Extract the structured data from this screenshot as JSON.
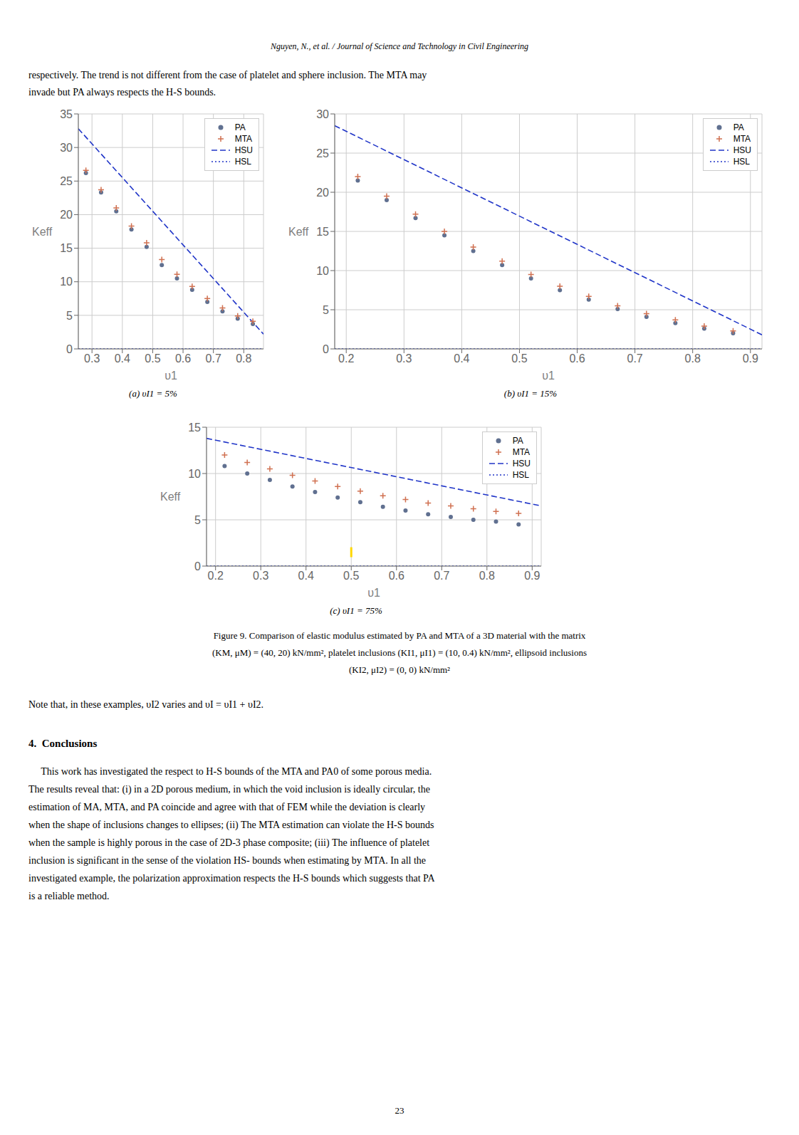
{
  "annotations": [
    "Nguyen, N., et al. / Journal of Science and Technology in Civil Engineering",
    "respectively. The trend is not different from the case of platelet and sphere inclusion. The MTA may",
    "invade but PA always respects the H-S bounds.",
    "Figure 9. Comparison of elastic modulus estimated by PA and MTA of a 3D material with the matrix",
    "(KM, μM) = (40, 20) kN/mm², platelet inclusions (KI1, μI1) = (10, 0.4) kN/mm², ellipsoid inclusions",
    "(KI2, μI2) = (0, 0) kN/mm²",
    "Note that, in these examples, υI2 varies and υI = υI1 + υI2.",
    "4.  Conclusions",
    "     This work has investigated the respect to H-S bounds of the MTA and PA0 of some porous media.",
    "The results reveal that: (i) in a 2D porous medium, in which the void inclusion is ideally circular, the",
    "estimation of MA, MTA, and PA coincide and agree with that of FEM while the deviation is clearly",
    "when the shape of inclusions changes to ellipses; (ii) The MTA estimation can violate the H-S bounds",
    "when the sample is highly porous in the case of 2D-3 phase composite; (iii) The influence of platelet",
    "inclusion is significant in the sense of the violation HS- bounds when estimating by MTA. In all the",
    "investigated example, the polarization approximation respects the H-S bounds which suggests that PA",
    "is a reliable method.",
    "23"
  ],
  "chart_data": [
    {
      "type": "scatter",
      "title": "(a) υI1 = 5%",
      "xlabel": "υ1",
      "ylabel": "Keff",
      "xlim": [
        0.255,
        0.865
      ],
      "ylim": [
        0,
        35
      ],
      "xticks": [
        0.3,
        0.4,
        0.5,
        0.6,
        0.7,
        0.8
      ],
      "yticks": [
        0,
        5,
        10,
        15,
        20,
        25,
        30,
        35
      ],
      "grid": true,
      "legend": "upper right",
      "series": [
        {
          "name": "PA",
          "type": "scatter",
          "color": "#607090",
          "marker": "circle",
          "x": [
            0.28,
            0.33,
            0.38,
            0.43,
            0.48,
            0.53,
            0.58,
            0.63,
            0.68,
            0.73,
            0.78,
            0.83
          ],
          "values": [
            26.2,
            23.3,
            20.5,
            17.8,
            15.2,
            12.5,
            10.5,
            8.8,
            7.0,
            5.6,
            4.5,
            3.7
          ]
        },
        {
          "name": "MTA",
          "type": "scatter",
          "color": "#D07050",
          "marker": "plus",
          "x": [
            0.28,
            0.33,
            0.38,
            0.43,
            0.48,
            0.53,
            0.58,
            0.63,
            0.68,
            0.73,
            0.78,
            0.83
          ],
          "values": [
            26.6,
            23.7,
            21.0,
            18.3,
            15.8,
            13.3,
            11.1,
            9.3,
            7.5,
            6.1,
            4.9,
            4.1
          ]
        },
        {
          "name": "HSU",
          "type": "line",
          "color": "#2035C8",
          "line_style": "dashed",
          "x": [
            0.255,
            0.865
          ],
          "values": [
            32.8,
            2.2
          ]
        },
        {
          "name": "HSL",
          "type": "line",
          "color": "#2035C8",
          "line_style": "dotted",
          "x": [
            0.255,
            0.865
          ],
          "values": [
            0.0,
            0.0
          ]
        }
      ]
    },
    {
      "type": "scatter",
      "title": "(b) υI1 = 15%",
      "xlabel": "υ1",
      "ylabel": "Keff",
      "xlim": [
        0.18,
        0.92
      ],
      "ylim": [
        0,
        30
      ],
      "xticks": [
        0.2,
        0.3,
        0.4,
        0.5,
        0.6,
        0.7,
        0.8,
        0.9
      ],
      "yticks": [
        0,
        5,
        10,
        15,
        20,
        25,
        30
      ],
      "grid": true,
      "legend": "upper right",
      "series": [
        {
          "name": "PA",
          "type": "scatter",
          "color": "#607090",
          "marker": "circle",
          "x": [
            0.22,
            0.27,
            0.32,
            0.37,
            0.42,
            0.47,
            0.52,
            0.57,
            0.62,
            0.67,
            0.72,
            0.77,
            0.82,
            0.87
          ],
          "values": [
            21.5,
            19.0,
            16.7,
            14.5,
            12.5,
            10.7,
            9.0,
            7.5,
            6.3,
            5.1,
            4.1,
            3.3,
            2.6,
            2.0
          ]
        },
        {
          "name": "MTA",
          "type": "scatter",
          "color": "#D07050",
          "marker": "plus",
          "x": [
            0.22,
            0.27,
            0.32,
            0.37,
            0.42,
            0.47,
            0.52,
            0.57,
            0.62,
            0.67,
            0.72,
            0.77,
            0.82,
            0.87
          ],
          "values": [
            22.0,
            19.5,
            17.2,
            15.0,
            13.0,
            11.2,
            9.5,
            8.0,
            6.7,
            5.5,
            4.5,
            3.7,
            2.9,
            2.3
          ]
        },
        {
          "name": "HSU",
          "type": "line",
          "color": "#2035C8",
          "line_style": "dashed",
          "x": [
            0.18,
            0.92
          ],
          "values": [
            28.5,
            1.8
          ]
        },
        {
          "name": "HSL",
          "type": "line",
          "color": "#2035C8",
          "line_style": "dotted",
          "x": [
            0.18,
            0.92
          ],
          "values": [
            0.0,
            0.0
          ]
        }
      ]
    },
    {
      "type": "scatter",
      "title": "(c) υI1 = 75%",
      "xlabel": "υ1",
      "ylabel": "Keff",
      "xlim": [
        0.18,
        0.92
      ],
      "ylim": [
        0,
        15
      ],
      "xticks": [
        0.2,
        0.3,
        0.4,
        0.5,
        0.6,
        0.7,
        0.8,
        0.9
      ],
      "yticks": [
        0,
        5,
        10,
        15
      ],
      "grid": true,
      "legend": "upper right",
      "series": [
        {
          "name": "PA",
          "type": "scatter",
          "color": "#607090",
          "marker": "circle",
          "x": [
            0.22,
            0.27,
            0.32,
            0.37,
            0.42,
            0.47,
            0.52,
            0.57,
            0.62,
            0.67,
            0.72,
            0.77,
            0.82,
            0.87
          ],
          "values": [
            10.8,
            10.0,
            9.3,
            8.6,
            8.0,
            7.4,
            6.9,
            6.4,
            6.0,
            5.6,
            5.3,
            5.0,
            4.8,
            4.5
          ]
        },
        {
          "name": "MTA",
          "type": "scatter",
          "color": "#D07050",
          "marker": "plus",
          "x": [
            0.22,
            0.27,
            0.32,
            0.37,
            0.42,
            0.47,
            0.52,
            0.57,
            0.62,
            0.67,
            0.72,
            0.77,
            0.82,
            0.87
          ],
          "values": [
            12.0,
            11.2,
            10.5,
            9.8,
            9.2,
            8.6,
            8.1,
            7.6,
            7.2,
            6.8,
            6.5,
            6.2,
            5.9,
            5.7
          ]
        },
        {
          "name": "HSU",
          "type": "line",
          "color": "#2035C8",
          "line_style": "dashed",
          "x": [
            0.18,
            0.92
          ],
          "values": [
            13.8,
            6.5
          ]
        },
        {
          "name": "HSL",
          "type": "line",
          "color": "#2035C8",
          "line_style": "dotted",
          "x": [
            0.18,
            0.92
          ],
          "values": [
            0.0,
            0.0
          ]
        },
        {
          "type": "scatter",
          "color": "#FFD700",
          "marker": "vline",
          "x": [
            0.5
          ],
          "values": [
            1.5
          ]
        }
      ]
    }
  ]
}
